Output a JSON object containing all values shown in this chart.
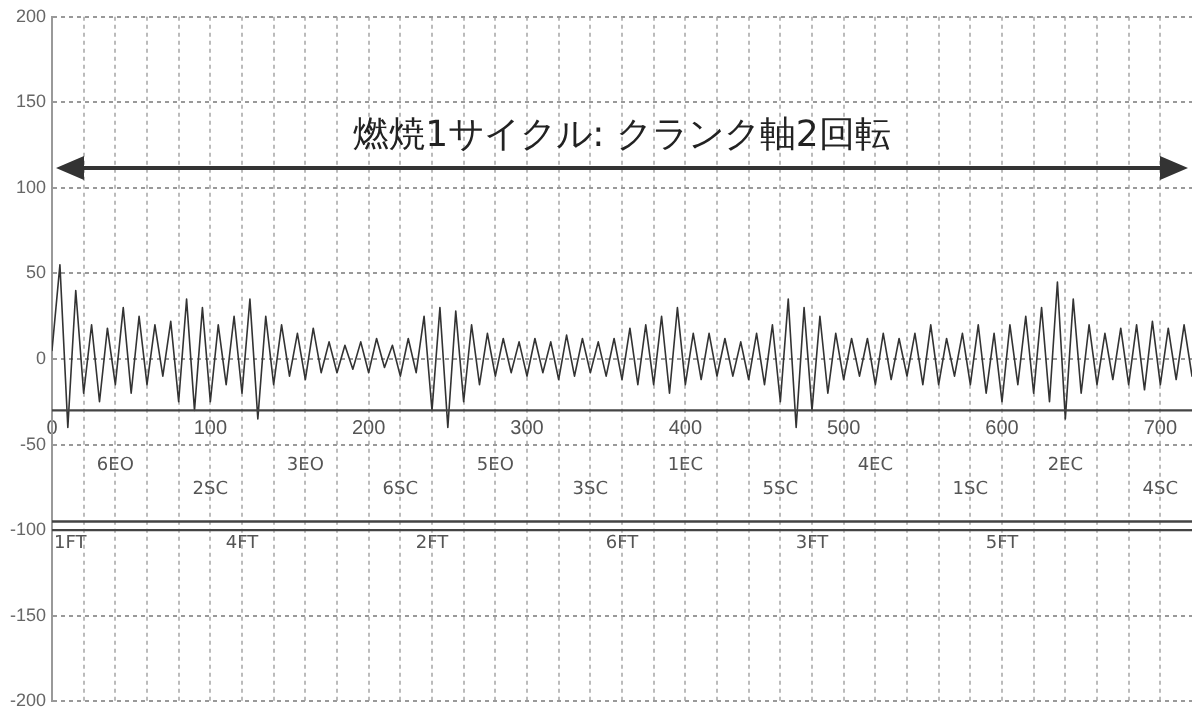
{
  "chart_data": {
    "type": "line",
    "x": [
      0,
      5,
      10,
      15,
      20,
      25,
      30,
      35,
      40,
      45,
      50,
      55,
      60,
      65,
      70,
      75,
      80,
      85,
      90,
      95,
      100,
      105,
      110,
      115,
      120,
      125,
      130,
      135,
      140,
      145,
      150,
      155,
      160,
      165,
      170,
      175,
      180,
      185,
      190,
      195,
      200,
      205,
      210,
      215,
      220,
      225,
      230,
      235,
      240,
      245,
      250,
      255,
      260,
      265,
      270,
      275,
      280,
      285,
      290,
      295,
      300,
      305,
      310,
      315,
      320,
      325,
      330,
      335,
      340,
      345,
      350,
      355,
      360,
      365,
      370,
      375,
      380,
      385,
      390,
      395,
      400,
      405,
      410,
      415,
      420,
      425,
      430,
      435,
      440,
      445,
      450,
      455,
      460,
      465,
      470,
      475,
      480,
      485,
      490,
      495,
      500,
      505,
      510,
      515,
      520,
      525,
      530,
      535,
      540,
      545,
      550,
      555,
      560,
      565,
      570,
      575,
      580,
      585,
      590,
      595,
      600,
      605,
      610,
      615,
      620,
      625,
      630,
      635,
      640,
      645,
      650,
      655,
      660,
      665,
      670,
      675,
      680,
      685,
      690,
      695,
      700,
      705,
      710,
      715,
      720
    ],
    "series": [
      {
        "color": "#333333",
        "values": [
          5,
          55,
          -40,
          40,
          -20,
          20,
          -25,
          18,
          -15,
          30,
          -20,
          25,
          -15,
          20,
          -10,
          22,
          -25,
          35,
          -30,
          30,
          -25,
          20,
          -15,
          25,
          -20,
          35,
          -35,
          25,
          -15,
          20,
          -10,
          15,
          -12,
          18,
          -8,
          10,
          -8,
          8,
          -6,
          10,
          -8,
          12,
          -5,
          8,
          -10,
          12,
          -8,
          25,
          -30,
          30,
          -40,
          28,
          -25,
          20,
          -15,
          15,
          -10,
          12,
          -8,
          10,
          -10,
          12,
          -8,
          10,
          -12,
          14,
          -10,
          12,
          -8,
          10,
          -10,
          12,
          -12,
          18,
          -15,
          20,
          -15,
          25,
          -20,
          30,
          -15,
          15,
          -12,
          15,
          -10,
          12,
          -10,
          10,
          -12,
          15,
          -15,
          20,
          -25,
          35,
          -40,
          30,
          -30,
          25,
          -20,
          15,
          -12,
          12,
          -10,
          12,
          -15,
          15,
          -12,
          12,
          -10,
          15,
          -15,
          20,
          -15,
          12,
          -10,
          15,
          -15,
          20,
          -20,
          15,
          -25,
          20,
          -15,
          25,
          -20,
          30,
          -25,
          45,
          -35,
          35,
          -20,
          20,
          -15,
          15,
          -12,
          18,
          -15,
          20,
          -18,
          22,
          -15,
          18,
          -12,
          20,
          -10
        ]
      }
    ],
    "xlim": [
      0,
      720
    ],
    "xticks": [
      {
        "value": 0,
        "label": "0"
      },
      {
        "value": 20,
        "label": null
      },
      {
        "value": 40,
        "label": null
      },
      {
        "value": 60,
        "label": null
      },
      {
        "value": 80,
        "label": null
      },
      {
        "value": 100,
        "label": "100"
      },
      {
        "value": 120,
        "label": null
      },
      {
        "value": 140,
        "label": null
      },
      {
        "value": 160,
        "label": null
      },
      {
        "value": 180,
        "label": null
      },
      {
        "value": 200,
        "label": "200"
      },
      {
        "value": 220,
        "label": null
      },
      {
        "value": 240,
        "label": null
      },
      {
        "value": 260,
        "label": null
      },
      {
        "value": 280,
        "label": null
      },
      {
        "value": 300,
        "label": "300"
      },
      {
        "value": 320,
        "label": null
      },
      {
        "value": 340,
        "label": null
      },
      {
        "value": 360,
        "label": null
      },
      {
        "value": 380,
        "label": null
      },
      {
        "value": 400,
        "label": "400"
      },
      {
        "value": 420,
        "label": null
      },
      {
        "value": 440,
        "label": null
      },
      {
        "value": 460,
        "label": null
      },
      {
        "value": 480,
        "label": null
      },
      {
        "value": 500,
        "label": "500"
      },
      {
        "value": 520,
        "label": null
      },
      {
        "value": 540,
        "label": null
      },
      {
        "value": 560,
        "label": null
      },
      {
        "value": 580,
        "label": null
      },
      {
        "value": 600,
        "label": "600"
      },
      {
        "value": 620,
        "label": null
      },
      {
        "value": 640,
        "label": null
      },
      {
        "value": 660,
        "label": null
      },
      {
        "value": 680,
        "label": null
      },
      {
        "value": 700,
        "label": "700"
      }
    ],
    "ylim": [
      -200,
      200
    ],
    "yticks": [
      -200,
      -150,
      -100,
      -50,
      0,
      50,
      100,
      150,
      200
    ],
    "grid": true,
    "line_style": "solid",
    "ref_lines": [
      {
        "axis": "y",
        "value": -30,
        "color": "#444444"
      },
      {
        "axis": "y",
        "value": -95,
        "color": "#444444"
      },
      {
        "axis": "y",
        "value": -100,
        "color": "#444444"
      }
    ],
    "annotations": [
      "燃焼1サイクル: クランク軸2回転",
      "6EO",
      "2SC",
      "3EO",
      "6SC",
      "5EO",
      "3SC",
      "1EC",
      "5SC",
      "4EC",
      "1SC",
      "2EC",
      "4SC",
      "1FT",
      "4FT",
      "2FT",
      "6FT",
      "3FT",
      "5FT"
    ]
  }
}
